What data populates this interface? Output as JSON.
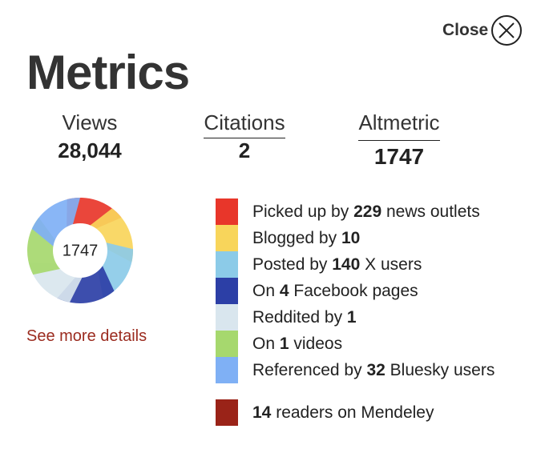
{
  "close": "Close",
  "title": "Metrics",
  "stats": [
    {
      "label": "Views",
      "value": "28,044"
    },
    {
      "label": "Citations",
      "value": "2"
    },
    {
      "label": "Altmetric",
      "value": "1747"
    }
  ],
  "badge": {
    "score": "1747",
    "link": "See more details"
  },
  "sources": [
    {
      "prefix": "Picked up by",
      "count": "229",
      "suffix": "news outlets",
      "color": "#e8362a"
    },
    {
      "prefix": "Blogged by",
      "count": "10",
      "color": "#f8d55b"
    },
    {
      "prefix": "Posted by",
      "count": "140",
      "suffix": "X users",
      "color": "#8ccbe8"
    },
    {
      "prefix": "On",
      "count": "4",
      "suffix": "Facebook pages",
      "color": "#2c3fa6"
    },
    {
      "prefix": "Reddited by",
      "count": "1",
      "color": "#d9e6ee"
    },
    {
      "prefix": "On",
      "count": "1",
      "suffix": "videos",
      "color": "#a6d86e"
    },
    {
      "prefix": "Referenced by",
      "count": "32",
      "suffix": "Bluesky users",
      "color": "#7fb0f5"
    }
  ],
  "readers": {
    "count": "14",
    "suffix": "readers on Mendeley",
    "color": "#9a2318"
  }
}
